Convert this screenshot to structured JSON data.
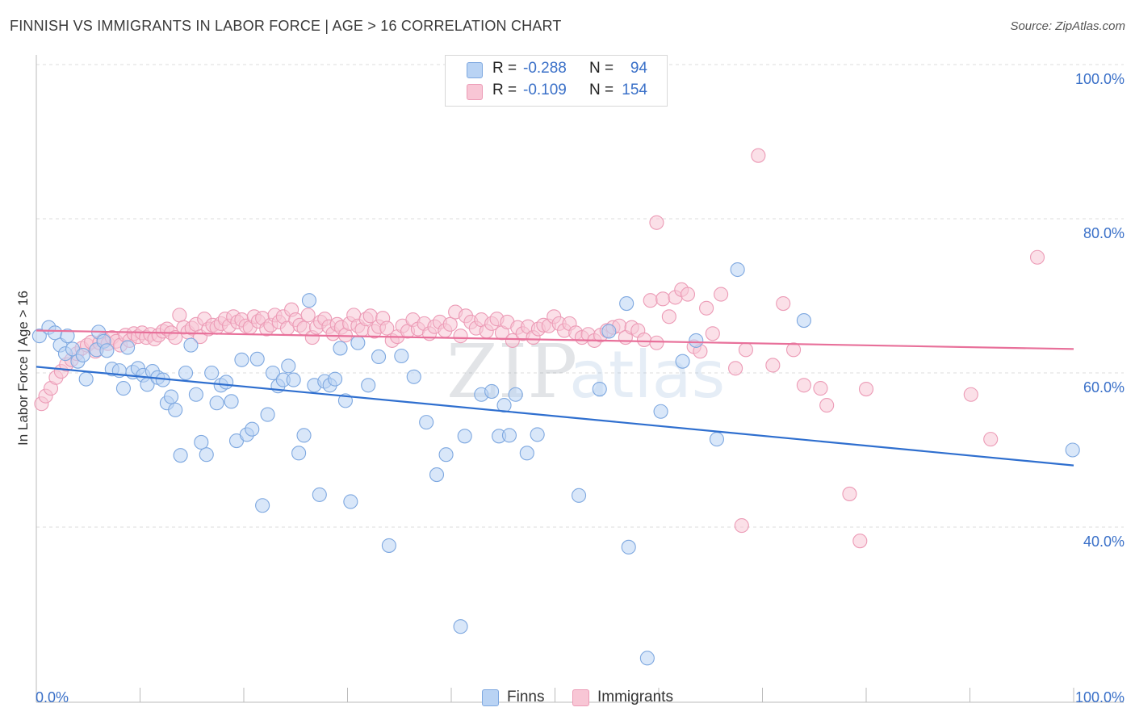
{
  "title": "FINNISH VS IMMIGRANTS IN LABOR FORCE | AGE > 16 CORRELATION CHART",
  "source": "Source: ZipAtlas.com",
  "watermark": {
    "text_zip": "ZIP",
    "text_atlas": "atlas"
  },
  "legend_top": {
    "rows": [
      {
        "r_label": "R =",
        "r_value": "-0.288",
        "n_label": "N =",
        "n_value": "94"
      },
      {
        "r_label": "R =",
        "r_value": "-0.109",
        "n_label": "N =",
        "n_value": "154"
      }
    ]
  },
  "legend_bottom": {
    "finns": "Finns",
    "immigrants": "Immigrants"
  },
  "colors": {
    "finns_fill": "#b9d3f4",
    "finns_stroke": "#7ea8e0",
    "finns_line": "#2f6fcf",
    "immigrants_fill": "#f8c6d5",
    "immigrants_stroke": "#ec9bb6",
    "immigrants_line": "#e8709a",
    "axis_text": "#3a70c8"
  },
  "chart_data": {
    "type": "scatter",
    "title": "FINNISH VS IMMIGRANTS IN LABOR FORCE | AGE > 16 CORRELATION CHART",
    "xlabel": "",
    "ylabel": "In Labor Force | Age > 16",
    "xlim": [
      0,
      100
    ],
    "ylim": [
      20,
      100
    ],
    "x_tick_labels": [
      "0.0%",
      "100.0%"
    ],
    "y_ticks": [
      40,
      60,
      80,
      100
    ],
    "y_tick_labels": [
      "40.0%",
      "60.0%",
      "80.0%",
      "100.0%"
    ],
    "grid": true,
    "legend_position": "top-center",
    "series": [
      {
        "name": "Finns",
        "trend": {
          "x": [
            0,
            100
          ],
          "y": [
            60.8,
            48.0
          ]
        },
        "points": [
          [
            0.3,
            64.8
          ],
          [
            1.2,
            65.9
          ],
          [
            1.8,
            65.2
          ],
          [
            2.3,
            63.6
          ],
          [
            2.8,
            62.5
          ],
          [
            3.5,
            63.1
          ],
          [
            4.0,
            61.5
          ],
          [
            4.5,
            62.3
          ],
          [
            4.8,
            59.2
          ],
          [
            5.8,
            63.0
          ],
          [
            6.0,
            65.3
          ],
          [
            6.5,
            64.1
          ],
          [
            6.8,
            62.9
          ],
          [
            7.3,
            60.5
          ],
          [
            8.0,
            60.3
          ],
          [
            8.4,
            58.0
          ],
          [
            8.8,
            63.3
          ],
          [
            9.3,
            60.1
          ],
          [
            9.8,
            60.6
          ],
          [
            10.3,
            59.7
          ],
          [
            10.7,
            58.5
          ],
          [
            11.2,
            60.2
          ],
          [
            11.7,
            59.4
          ],
          [
            12.2,
            59.1
          ],
          [
            12.6,
            56.1
          ],
          [
            13.0,
            56.9
          ],
          [
            13.4,
            55.2
          ],
          [
            13.9,
            49.3
          ],
          [
            14.4,
            60.0
          ],
          [
            14.9,
            63.6
          ],
          [
            15.4,
            57.2
          ],
          [
            15.9,
            51.0
          ],
          [
            16.4,
            49.4
          ],
          [
            16.9,
            60.0
          ],
          [
            17.4,
            56.1
          ],
          [
            17.8,
            58.4
          ],
          [
            18.3,
            58.8
          ],
          [
            18.8,
            56.3
          ],
          [
            19.3,
            51.2
          ],
          [
            19.8,
            61.7
          ],
          [
            20.3,
            52.0
          ],
          [
            20.8,
            52.7
          ],
          [
            21.3,
            61.8
          ],
          [
            21.8,
            42.8
          ],
          [
            22.3,
            54.6
          ],
          [
            22.8,
            60.0
          ],
          [
            23.3,
            58.3
          ],
          [
            23.8,
            59.1
          ],
          [
            24.3,
            60.9
          ],
          [
            24.8,
            59.1
          ],
          [
            25.3,
            49.6
          ],
          [
            25.8,
            51.9
          ],
          [
            26.3,
            69.4
          ],
          [
            26.8,
            58.4
          ],
          [
            27.3,
            44.2
          ],
          [
            27.8,
            58.9
          ],
          [
            28.3,
            58.4
          ],
          [
            28.8,
            59.2
          ],
          [
            29.3,
            63.2
          ],
          [
            29.8,
            56.4
          ],
          [
            30.3,
            43.3
          ],
          [
            31.0,
            63.9
          ],
          [
            32.0,
            58.4
          ],
          [
            33.0,
            62.1
          ],
          [
            34.0,
            37.6
          ],
          [
            35.2,
            62.2
          ],
          [
            36.4,
            59.5
          ],
          [
            37.6,
            53.6
          ],
          [
            38.6,
            46.8
          ],
          [
            39.5,
            49.4
          ],
          [
            40.9,
            27.1
          ],
          [
            41.3,
            51.8
          ],
          [
            42.9,
            57.2
          ],
          [
            43.9,
            57.6
          ],
          [
            44.6,
            51.8
          ],
          [
            45.1,
            55.8
          ],
          [
            45.6,
            51.9
          ],
          [
            46.2,
            57.2
          ],
          [
            47.3,
            49.6
          ],
          [
            48.3,
            52.0
          ],
          [
            52.3,
            44.1
          ],
          [
            54.3,
            57.9
          ],
          [
            55.2,
            65.4
          ],
          [
            56.9,
            69.0
          ],
          [
            57.1,
            37.4
          ],
          [
            58.9,
            23.0
          ],
          [
            60.2,
            55.0
          ],
          [
            62.3,
            61.5
          ],
          [
            63.6,
            64.2
          ],
          [
            65.6,
            51.4
          ],
          [
            67.6,
            73.4
          ],
          [
            74.0,
            66.8
          ],
          [
            3.0,
            64.8
          ],
          [
            99.9,
            50.0
          ]
        ]
      },
      {
        "name": "Immigrants",
        "trend": {
          "x": [
            0,
            100
          ],
          "y": [
            65.5,
            63.1
          ]
        },
        "points": [
          [
            0.5,
            56.0
          ],
          [
            0.9,
            57.0
          ],
          [
            1.4,
            58.0
          ],
          [
            1.9,
            59.4
          ],
          [
            2.4,
            60.2
          ],
          [
            2.9,
            61.1
          ],
          [
            3.4,
            61.7
          ],
          [
            3.9,
            62.5
          ],
          [
            4.4,
            63.2
          ],
          [
            4.9,
            63.6
          ],
          [
            5.3,
            64.0
          ],
          [
            5.7,
            62.8
          ],
          [
            6.1,
            63.9
          ],
          [
            6.5,
            64.3
          ],
          [
            6.9,
            63.8
          ],
          [
            7.3,
            64.6
          ],
          [
            7.7,
            64.1
          ],
          [
            8.1,
            63.6
          ],
          [
            8.6,
            64.9
          ],
          [
            9.0,
            64.2
          ],
          [
            9.4,
            65.1
          ],
          [
            9.8,
            64.7
          ],
          [
            10.2,
            65.2
          ],
          [
            10.6,
            64.6
          ],
          [
            11.0,
            65.0
          ],
          [
            11.4,
            64.4
          ],
          [
            11.8,
            64.9
          ],
          [
            12.2,
            65.4
          ],
          [
            12.6,
            65.7
          ],
          [
            13.0,
            65.2
          ],
          [
            13.4,
            64.6
          ],
          [
            13.8,
            67.5
          ],
          [
            14.2,
            65.9
          ],
          [
            14.6,
            65.3
          ],
          [
            15.0,
            65.8
          ],
          [
            15.4,
            66.3
          ],
          [
            15.8,
            64.7
          ],
          [
            16.2,
            67.0
          ],
          [
            16.6,
            65.7
          ],
          [
            17.0,
            66.2
          ],
          [
            17.4,
            65.9
          ],
          [
            17.8,
            66.4
          ],
          [
            18.2,
            67.0
          ],
          [
            18.6,
            66.1
          ],
          [
            19.0,
            67.3
          ],
          [
            19.4,
            66.6
          ],
          [
            19.8,
            66.9
          ],
          [
            20.2,
            66.1
          ],
          [
            20.6,
            65.9
          ],
          [
            21.0,
            67.3
          ],
          [
            21.4,
            66.7
          ],
          [
            21.8,
            67.1
          ],
          [
            22.2,
            65.7
          ],
          [
            22.6,
            66.2
          ],
          [
            23.0,
            67.5
          ],
          [
            23.4,
            66.6
          ],
          [
            23.8,
            67.3
          ],
          [
            24.2,
            65.8
          ],
          [
            24.6,
            68.2
          ],
          [
            25.0,
            66.9
          ],
          [
            25.4,
            66.2
          ],
          [
            25.8,
            65.8
          ],
          [
            26.2,
            67.5
          ],
          [
            26.6,
            64.6
          ],
          [
            27.0,
            65.9
          ],
          [
            27.4,
            66.6
          ],
          [
            27.8,
            67.0
          ],
          [
            28.2,
            66.0
          ],
          [
            28.6,
            65.1
          ],
          [
            29.0,
            66.3
          ],
          [
            29.4,
            65.9
          ],
          [
            29.8,
            64.9
          ],
          [
            30.2,
            66.4
          ],
          [
            30.6,
            67.5
          ],
          [
            31.0,
            66.1
          ],
          [
            31.4,
            65.6
          ],
          [
            31.8,
            67.0
          ],
          [
            32.2,
            67.4
          ],
          [
            32.6,
            65.4
          ],
          [
            33.0,
            66.0
          ],
          [
            33.4,
            67.1
          ],
          [
            33.8,
            65.8
          ],
          [
            34.3,
            64.2
          ],
          [
            34.8,
            64.7
          ],
          [
            35.3,
            66.1
          ],
          [
            35.8,
            65.4
          ],
          [
            36.3,
            66.9
          ],
          [
            36.8,
            65.7
          ],
          [
            37.4,
            66.4
          ],
          [
            37.9,
            65.1
          ],
          [
            38.4,
            66.0
          ],
          [
            38.9,
            66.6
          ],
          [
            39.4,
            65.5
          ],
          [
            39.9,
            66.3
          ],
          [
            40.4,
            67.9
          ],
          [
            40.9,
            64.8
          ],
          [
            41.4,
            67.4
          ],
          [
            41.9,
            66.6
          ],
          [
            42.4,
            65.8
          ],
          [
            42.9,
            66.9
          ],
          [
            43.4,
            65.4
          ],
          [
            43.9,
            66.4
          ],
          [
            44.4,
            67.0
          ],
          [
            44.9,
            65.2
          ],
          [
            45.4,
            66.6
          ],
          [
            45.9,
            64.2
          ],
          [
            46.4,
            65.9
          ],
          [
            46.9,
            65.1
          ],
          [
            47.4,
            66.0
          ],
          [
            47.9,
            64.6
          ],
          [
            48.4,
            65.7
          ],
          [
            48.9,
            66.2
          ],
          [
            49.4,
            66.1
          ],
          [
            49.9,
            67.3
          ],
          [
            50.4,
            66.4
          ],
          [
            50.9,
            65.5
          ],
          [
            51.4,
            66.4
          ],
          [
            52.0,
            65.2
          ],
          [
            52.6,
            64.6
          ],
          [
            53.2,
            65.0
          ],
          [
            53.8,
            64.2
          ],
          [
            54.4,
            64.9
          ],
          [
            55.0,
            65.5
          ],
          [
            55.6,
            65.9
          ],
          [
            56.2,
            66.1
          ],
          [
            56.8,
            64.6
          ],
          [
            57.4,
            65.9
          ],
          [
            58.0,
            65.5
          ],
          [
            58.6,
            64.3
          ],
          [
            59.2,
            69.4
          ],
          [
            59.8,
            63.9
          ],
          [
            60.4,
            69.6
          ],
          [
            61.0,
            67.3
          ],
          [
            61.6,
            69.8
          ],
          [
            62.2,
            70.8
          ],
          [
            62.8,
            70.2
          ],
          [
            63.4,
            63.4
          ],
          [
            64.0,
            62.8
          ],
          [
            64.6,
            68.4
          ],
          [
            65.2,
            65.1
          ],
          [
            66.0,
            70.2
          ],
          [
            67.4,
            60.6
          ],
          [
            68.4,
            63.0
          ],
          [
            69.6,
            88.2
          ],
          [
            71.0,
            61.0
          ],
          [
            72.0,
            69.0
          ],
          [
            73.0,
            63.0
          ],
          [
            74.0,
            58.4
          ],
          [
            75.6,
            58.0
          ],
          [
            78.4,
            44.3
          ],
          [
            80.0,
            57.9
          ],
          [
            90.1,
            57.2
          ],
          [
            92.0,
            51.4
          ],
          [
            96.5,
            75.0
          ],
          [
            59.8,
            79.5
          ],
          [
            68.0,
            40.2
          ],
          [
            79.4,
            38.2
          ],
          [
            76.2,
            55.8
          ]
        ]
      }
    ]
  }
}
